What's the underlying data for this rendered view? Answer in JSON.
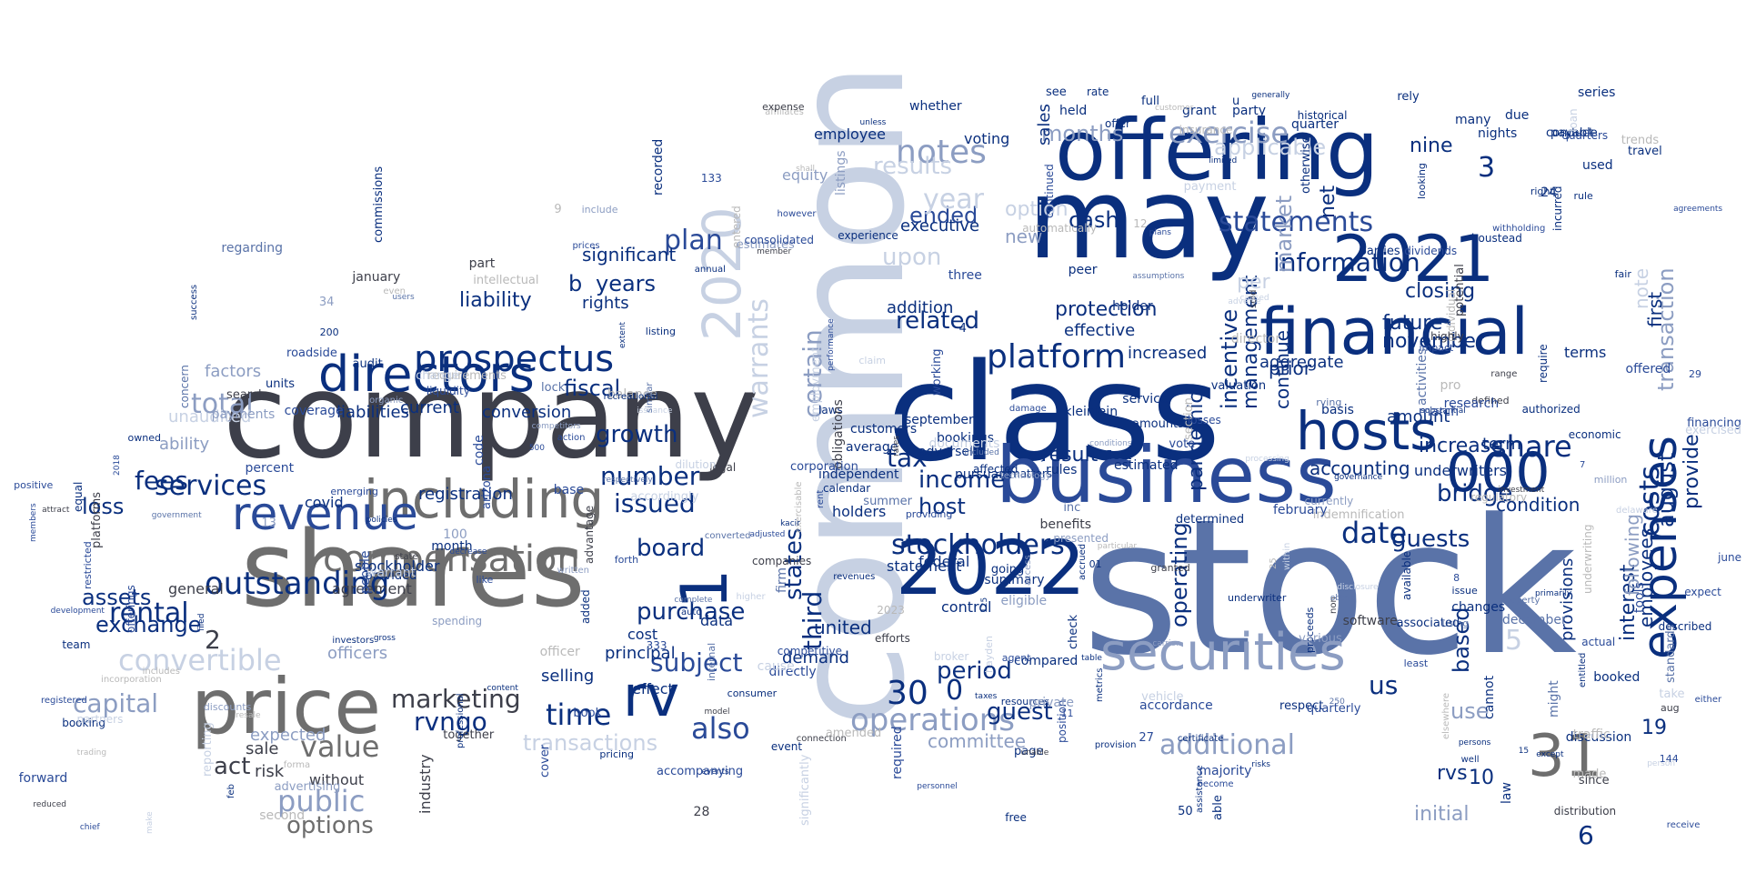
{
  "colors": {
    "background": "#ffffff",
    "navy": "#0a2f7e",
    "blue": "#2a4a98",
    "steel": "#5a73a8",
    "slate": "#8c9dc2",
    "mist": "#c7d1e3",
    "charcoal": "#3d3f4a",
    "gray": "#6e6e6e",
    "lightgray": "#b9b9b9"
  },
  "words": [
    "stock",
    "class",
    "common",
    "company",
    "shares",
    "may",
    "offering",
    "business",
    "financial",
    "securities",
    "2022",
    "2021",
    "including",
    "revenue",
    "price",
    "directors",
    "hosts",
    "expenses",
    "prospectus",
    "compensation",
    "000",
    "31",
    "1",
    "2020",
    "rv",
    "outstanding",
    "operations",
    "platform",
    "share",
    "costs",
    "services",
    "notes",
    "exercise",
    "warrants",
    "certain",
    "months",
    "statements",
    "information",
    "stockholders",
    "date",
    "bridge",
    "guests",
    "rental",
    "fees",
    "total",
    "value",
    "public",
    "options",
    "marketing",
    "act",
    "convertible",
    "capital",
    "assets",
    "exchange",
    "loss",
    "purchase",
    "board",
    "subject",
    "time",
    "also",
    "number",
    "growth",
    "issued",
    "fiscal",
    "plan",
    "years",
    "b",
    "liability",
    "rights",
    "significant",
    "tax",
    "income",
    "host",
    "related",
    "ended",
    "upon",
    "year",
    "results",
    "cash",
    "option",
    "new",
    "protection",
    "result",
    "incentive",
    "operating",
    "pandemic",
    "management",
    "market",
    "net",
    "future",
    "november",
    "august",
    "provide",
    "employees",
    "transaction",
    "first",
    "interest",
    "following",
    "provisions",
    "us",
    "based",
    "use",
    "initial",
    "rvs",
    "third",
    "states",
    "united",
    "period",
    "guest",
    "30",
    "0",
    "3",
    "2",
    "5",
    "6",
    "19",
    "10",
    "increase",
    "condition",
    "nine",
    "per",
    "prior",
    "closing",
    "note",
    "terms",
    "underwriters",
    "term",
    "accounting",
    "continue",
    "additional",
    "applicable",
    "transactions",
    "committee",
    "sales",
    "equity",
    "executive",
    "agreement",
    "general",
    "risk",
    "sale",
    "expected",
    "officers",
    "without",
    "industry",
    "rvngo",
    "unaudited",
    "factors",
    "ability",
    "current",
    "liabilities",
    "conversion",
    "registration",
    "covid",
    "stockholder",
    "selling",
    "principal",
    "cost",
    "demand",
    "data",
    "effect",
    "amount",
    "aggregate",
    "increased",
    "effective",
    "addition",
    "holders",
    "federal",
    "statement",
    "control",
    "compared",
    "estimated",
    "pursuant",
    "bookings",
    "september",
    "independent",
    "adversely",
    "laws",
    "customers",
    "fleet",
    "amounts",
    "rules",
    "matters",
    "affected",
    "key",
    "average",
    "u",
    "employee",
    "voting",
    "whether",
    "held",
    "full",
    "rate",
    "see",
    "grant",
    "offer",
    "party",
    "quarter",
    "due",
    "payable",
    "used",
    "travel",
    "many",
    "nights",
    "conduct",
    "series",
    "gross",
    "currently",
    "requirements",
    "section",
    "required",
    "made",
    "include",
    "delaware",
    "arizona",
    "loan",
    "million",
    "issuance",
    "connection",
    "2023",
    "100",
    "discounts",
    "make",
    "exercisable",
    "except",
    "peer",
    "change",
    "forward",
    "incurred",
    "part",
    "non",
    "reporting",
    "trading",
    "basis",
    "annual",
    "forth",
    "estimates",
    "provision",
    "percent",
    "experience",
    "providing",
    "historical",
    "sold",
    "includes",
    "50",
    "risks",
    "members",
    "people",
    "higher",
    "advertising",
    "continued",
    "included",
    "booked",
    "take",
    "legal",
    "granted",
    "financing",
    "pricing",
    "parties",
    "entitled",
    "event",
    "losses",
    "impact",
    "cover",
    "development",
    "tools",
    "registered",
    "added",
    "software",
    "platforms",
    "state",
    "quarters",
    "vehicle",
    "substantial",
    "discussion",
    "feb",
    "law",
    "rent",
    "conditions",
    "valuation",
    "described",
    "offerings",
    "dilution",
    "extent",
    "elsewhere",
    "events",
    "provided",
    "proceeds",
    "action",
    "property",
    "least",
    "director",
    "accordance",
    "resources",
    "dividends",
    "broker",
    "spending",
    "inc",
    "benefits",
    "advantage",
    "balance",
    "performance",
    "shall",
    "regarding",
    "agent",
    "payment",
    "free",
    "success",
    "three",
    "available",
    "team",
    "insurance",
    "determined",
    "affiliates",
    "officer",
    "january",
    "hayden",
    "kleinlein",
    "similar",
    "companies",
    "service",
    "booking",
    "users",
    "table",
    "chief",
    "using",
    "check",
    "obtain",
    "june",
    "roadside",
    "exercised",
    "individual",
    "obligations",
    "member",
    "resale",
    "primarily",
    "vote",
    "2018",
    "assumptions",
    "certificate",
    "converted",
    "defined",
    "fair",
    "summary",
    "directly",
    "indemnification",
    "reduced",
    "since",
    "limited",
    "listing",
    "consumer",
    "going",
    "plans",
    "coverage",
    "lock",
    "accrued",
    "filed",
    "trends",
    "prices",
    "agreements",
    "underwriting",
    "units",
    "internal",
    "regulatory",
    "carrier",
    "accordingly",
    "rates",
    "emerging",
    "taxes",
    "pro",
    "eligible",
    "assistance",
    "february",
    "calendar",
    "efforts",
    "restricted",
    "firm",
    "partners",
    "warrant",
    "government",
    "month",
    "decrease",
    "aug",
    "code",
    "liquidity",
    "actual",
    "position",
    "disclosure",
    "cannot",
    "competitive",
    "concern",
    "traffic",
    "various",
    "automatically",
    "recorded",
    "december",
    "rely",
    "significantly",
    "entered",
    "holder",
    "research",
    "activities",
    "underwriter",
    "positive",
    "processing",
    "governance",
    "highly",
    "respect",
    "working",
    "base",
    "owned",
    "125",
    "might",
    "boustead",
    "together",
    "unless",
    "range",
    "expect",
    "claim",
    "right",
    "damage",
    "search",
    "looking",
    "documents",
    "economic",
    "employment",
    "cause",
    "professional",
    "authorized",
    "within",
    "issue",
    "presented",
    "accompanying",
    "quarterly",
    "customer",
    "investment",
    "attract",
    "technology",
    "corporation",
    "second",
    "policies",
    "require",
    "page",
    "adverse",
    "like",
    "distribution",
    "withholding",
    "become",
    "adjusted",
    "competitors",
    "standards",
    "audit",
    "kacir",
    "rving",
    "unable",
    "generally",
    "rule",
    "metrics",
    "500",
    "recreational",
    "receive",
    "particular",
    "content",
    "march",
    "well",
    "payments",
    "persons",
    "private",
    "either",
    "revenues",
    "auto",
    "incorporation",
    "however",
    "complete",
    "intellectual",
    "equal",
    "consolidated",
    "personnel",
    "commissions",
    "organic",
    "potential",
    "access",
    "otherwise",
    "changes",
    "amended",
    "respectively",
    "investors",
    "person",
    "listings",
    "even",
    "expense",
    "associated",
    "forma",
    "summer",
    "able",
    "majority",
    "written",
    "offered",
    "caused",
    "model",
    "book",
    "01",
    "34",
    "28",
    "144",
    "11",
    "29",
    "200",
    "8",
    "12",
    "25",
    "4",
    "7",
    "133",
    "9",
    "13",
    "250",
    "333",
    "24",
    "15",
    "27"
  ]
}
